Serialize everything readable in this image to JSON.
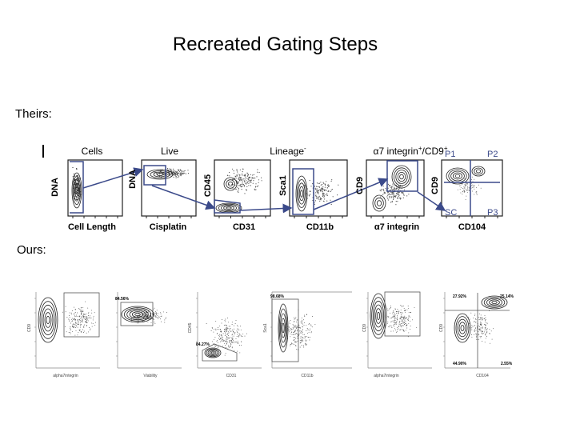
{
  "slide": {
    "title": "Recreated Gating Steps",
    "theirs_label": "Theirs:",
    "ours_label": "Ours:"
  },
  "theirs": {
    "group_titles": {
      "cells": "Cells",
      "live": "Live",
      "lineage": "Lineage",
      "lineage_sup": "-",
      "a7": "α7 integrin",
      "a7_sup1": "+",
      "a7_mid": "/CD9",
      "a7_sup2": "+"
    },
    "panels": [
      {
        "ylabel": "DNA",
        "xlabel": "Cell Length"
      },
      {
        "ylabel": "DNA",
        "xlabel": "Cisplatin"
      },
      {
        "ylabel": "CD45",
        "xlabel": "CD31"
      },
      {
        "ylabel": "Sca1",
        "xlabel": "CD11b"
      },
      {
        "ylabel": "CD9",
        "xlabel": "α7 integrin"
      },
      {
        "ylabel": "CD9",
        "xlabel": "CD104"
      }
    ],
    "quadrants": {
      "p1": "P1",
      "p2": "P2",
      "p3": "P3",
      "sc": "SC"
    },
    "accent_color": "#3b4a8a"
  },
  "ours": {
    "panels": [
      {
        "ylabel": "CD9",
        "xlabel": "alpha7integrin",
        "gate_pct": ""
      },
      {
        "ylabel": "",
        "xlabel": "Viability",
        "gate_pct": "84.56%"
      },
      {
        "ylabel": "CD45",
        "xlabel": "CD31",
        "gate_pct": "84.27%"
      },
      {
        "ylabel": "Sca1",
        "xlabel": "CD11b",
        "gate_pct": "98.68%"
      },
      {
        "ylabel": "CD9",
        "xlabel": "alpha7integrin",
        "gate_pct": ""
      },
      {
        "ylabel": "CD9",
        "xlabel": "CD104",
        "gate_pct": ""
      }
    ],
    "quadrant_pcts": {
      "ul": "27.92%",
      "ur": "25.14%",
      "ll": "44.90%",
      "lr": "2.55%"
    }
  }
}
